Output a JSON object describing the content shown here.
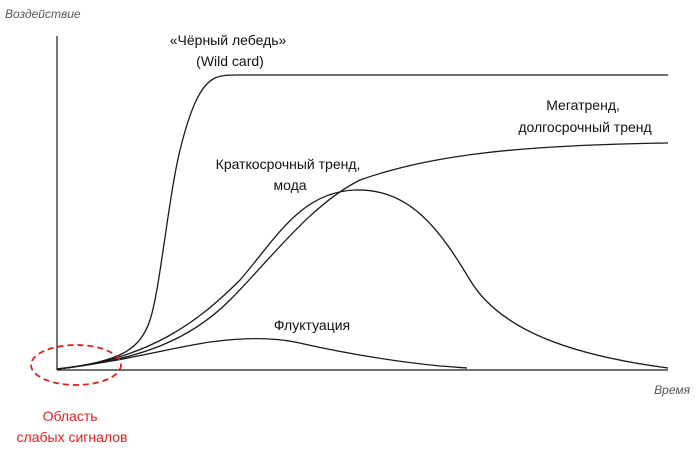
{
  "axes": {
    "y_title": "Воздействие",
    "x_title": "Время"
  },
  "curves": {
    "black_swan": [
      "«Чёрный лебедь»",
      "(Wild card)"
    ],
    "megatrend": [
      "Мегатренд,",
      "долгосрочный тренд"
    ],
    "short_trend": [
      "Краткосрочный тренд,",
      "мода"
    ],
    "fluctuation": [
      "Флуктуация"
    ]
  },
  "weak_signals": {
    "label": [
      "Область",
      "слабых сигналов"
    ],
    "color": "#e0201e"
  },
  "colors": {
    "line": "#1a1a1a"
  }
}
